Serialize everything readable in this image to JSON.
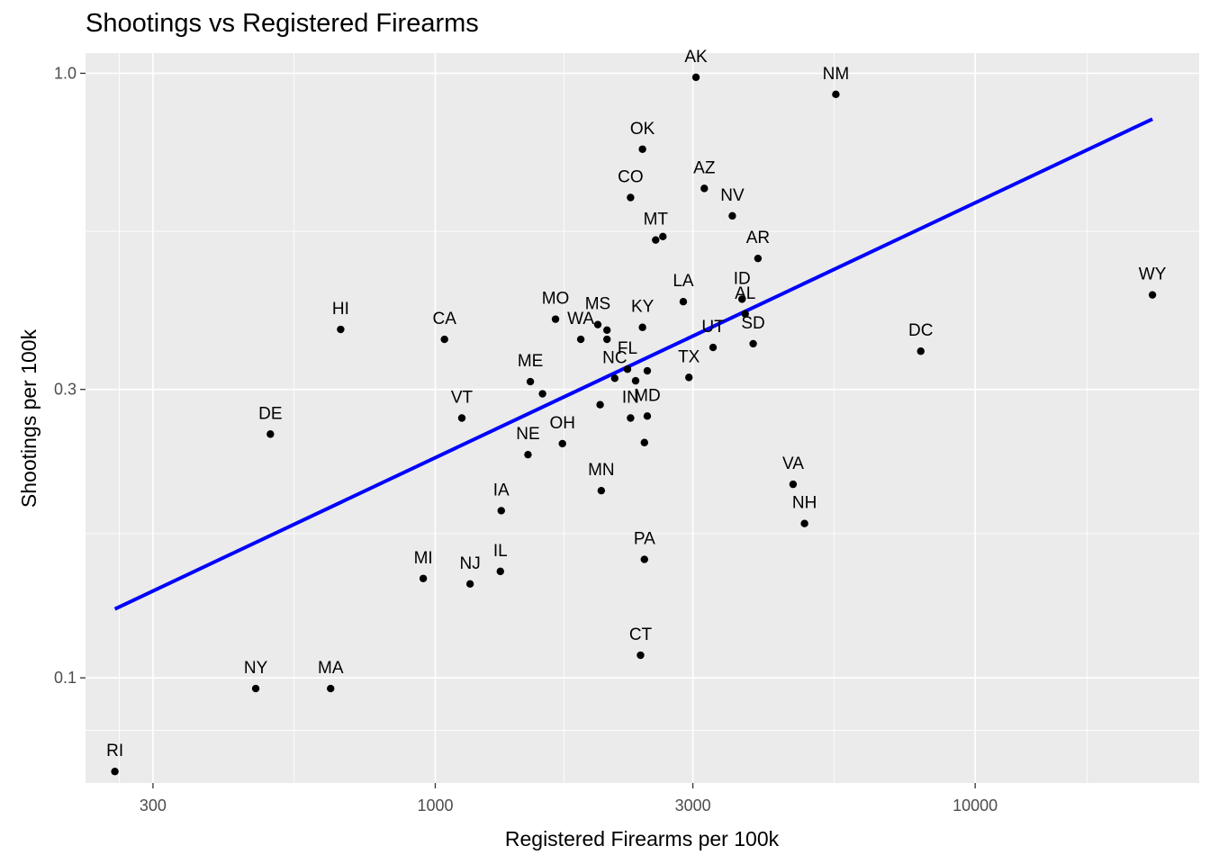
{
  "chart_data": {
    "type": "scatter",
    "title": "Shootings vs Registered Firearms",
    "xlabel": "Registered Firearms per 100k",
    "ylabel": "Shootings per 100k",
    "x_scale": "log10",
    "y_scale": "log10",
    "xlim": [
      225,
      26000
    ],
    "ylim": [
      0.067,
      1.08
    ],
    "x_ticks": [
      300,
      1000,
      3000,
      10000
    ],
    "x_tick_labels": [
      "300",
      "1000",
      "3000",
      "10000"
    ],
    "y_ticks": [
      0.1,
      0.3,
      1.0
    ],
    "y_tick_labels": [
      "0.1",
      "0.3",
      "1.0"
    ],
    "grid": true,
    "legend": "none",
    "colors": {
      "panel": "#ebebeb",
      "grid": "#ffffff",
      "points": "#000000",
      "trend": "#0000ff"
    },
    "points": [
      {
        "label": "RI",
        "x": 255,
        "y": 0.07
      },
      {
        "label": "NY",
        "x": 465,
        "y": 0.096
      },
      {
        "label": "MA",
        "x": 640,
        "y": 0.096
      },
      {
        "label": "DE",
        "x": 495,
        "y": 0.253
      },
      {
        "label": "HI",
        "x": 668,
        "y": 0.377
      },
      {
        "label": "CA",
        "x": 1040,
        "y": 0.363
      },
      {
        "label": "VT",
        "x": 1120,
        "y": 0.269
      },
      {
        "label": "MI",
        "x": 950,
        "y": 0.146
      },
      {
        "label": "NJ",
        "x": 1160,
        "y": 0.143
      },
      {
        "label": "IL",
        "x": 1320,
        "y": 0.15
      },
      {
        "label": "IA",
        "x": 1325,
        "y": 0.189
      },
      {
        "label": "NE",
        "x": 1485,
        "y": 0.234
      },
      {
        "label": "ME",
        "x": 1500,
        "y": 0.309
      },
      {
        "label": "",
        "x": 1580,
        "y": 0.295
      },
      {
        "label": "OH",
        "x": 1720,
        "y": 0.244
      },
      {
        "label": "MO",
        "x": 1670,
        "y": 0.392
      },
      {
        "label": "WA",
        "x": 1860,
        "y": 0.363
      },
      {
        "label": "MS",
        "x": 2000,
        "y": 0.384
      },
      {
        "label": "",
        "x": 2080,
        "y": 0.376
      },
      {
        "label": "",
        "x": 2080,
        "y": 0.363
      },
      {
        "label": "NC",
        "x": 2150,
        "y": 0.313
      },
      {
        "label": "",
        "x": 2020,
        "y": 0.283
      },
      {
        "label": "MN",
        "x": 2030,
        "y": 0.204
      },
      {
        "label": "FL",
        "x": 2270,
        "y": 0.324
      },
      {
        "label": "",
        "x": 2350,
        "y": 0.31
      },
      {
        "label": "IN",
        "x": 2300,
        "y": 0.269
      },
      {
        "label": "MD",
        "x": 2470,
        "y": 0.271
      },
      {
        "label": "",
        "x": 2440,
        "y": 0.245
      },
      {
        "label": "",
        "x": 2470,
        "y": 0.322
      },
      {
        "label": "KY",
        "x": 2420,
        "y": 0.38
      },
      {
        "label": "OK",
        "x": 2420,
        "y": 0.749
      },
      {
        "label": "CO",
        "x": 2300,
        "y": 0.623
      },
      {
        "label": "MT",
        "x": 2560,
        "y": 0.53
      },
      {
        "label": "",
        "x": 2640,
        "y": 0.537
      },
      {
        "label": "PA",
        "x": 2440,
        "y": 0.157
      },
      {
        "label": "CT",
        "x": 2400,
        "y": 0.109
      },
      {
        "label": "LA",
        "x": 2880,
        "y": 0.419
      },
      {
        "label": "TX",
        "x": 2950,
        "y": 0.314
      },
      {
        "label": "AK",
        "x": 3040,
        "y": 0.985
      },
      {
        "label": "AZ",
        "x": 3150,
        "y": 0.645
      },
      {
        "label": "UT",
        "x": 3270,
        "y": 0.352
      },
      {
        "label": "NV",
        "x": 3550,
        "y": 0.581
      },
      {
        "label": "ID",
        "x": 3700,
        "y": 0.423
      },
      {
        "label": "AL",
        "x": 3750,
        "y": 0.4
      },
      {
        "label": "SD",
        "x": 3880,
        "y": 0.357
      },
      {
        "label": "AR",
        "x": 3960,
        "y": 0.494
      },
      {
        "label": "VA",
        "x": 4600,
        "y": 0.209
      },
      {
        "label": "NH",
        "x": 4830,
        "y": 0.18
      },
      {
        "label": "NM",
        "x": 5520,
        "y": 0.923
      },
      {
        "label": "DC",
        "x": 7930,
        "y": 0.347
      },
      {
        "label": "WY",
        "x": 21300,
        "y": 0.43
      }
    ],
    "trend_line": {
      "x": [
        255,
        21300
      ],
      "y": [
        0.13,
        0.84
      ]
    }
  }
}
